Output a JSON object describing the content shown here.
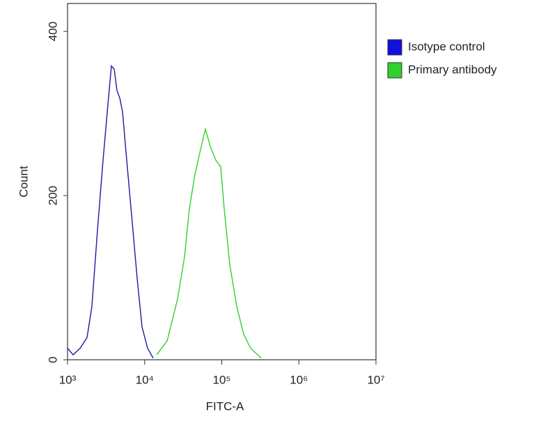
{
  "chart_data": {
    "type": "line",
    "xlabel": "FITC-A",
    "ylabel": "Count",
    "xscale": "log",
    "xlim": [
      1000,
      10000000
    ],
    "xticks": [
      {
        "value": 1000,
        "label": "10³"
      },
      {
        "value": 10000,
        "label": "10⁴"
      },
      {
        "value": 100000,
        "label": "10⁵"
      },
      {
        "value": 1000000,
        "label": "10⁶"
      },
      {
        "value": 10000000,
        "label": "10⁷"
      }
    ],
    "ylim": [
      0,
      434
    ],
    "yticks": [
      0,
      200,
      400
    ],
    "legend": "outside-right",
    "series": [
      {
        "name": "Isotype control",
        "color": "#1a1aa8",
        "x": [
          1000,
          1181,
          1454,
          1790,
          2070,
          2443,
          2887,
          3340,
          3705,
          4027,
          4375,
          4753,
          5164,
          5855,
          6914,
          7998,
          9248,
          10920,
          12900
        ],
        "values": [
          14,
          6,
          14,
          27,
          65,
          158,
          243,
          311,
          358,
          354,
          328,
          319,
          302,
          243,
          167,
          99,
          40,
          14,
          2
        ]
      },
      {
        "name": "Primary antibody",
        "color": "#2fd12f",
        "x": [
          14310,
          19560,
          26710,
          32880,
          38020,
          44920,
          53040,
          61340,
          70960,
          83800,
          96940,
          107500,
          127000,
          156400,
          192500,
          237000,
          323600
        ],
        "values": [
          6,
          23,
          74,
          125,
          184,
          226,
          256,
          281,
          260,
          243,
          235,
          184,
          116,
          65,
          31,
          14,
          2
        ]
      }
    ]
  }
}
